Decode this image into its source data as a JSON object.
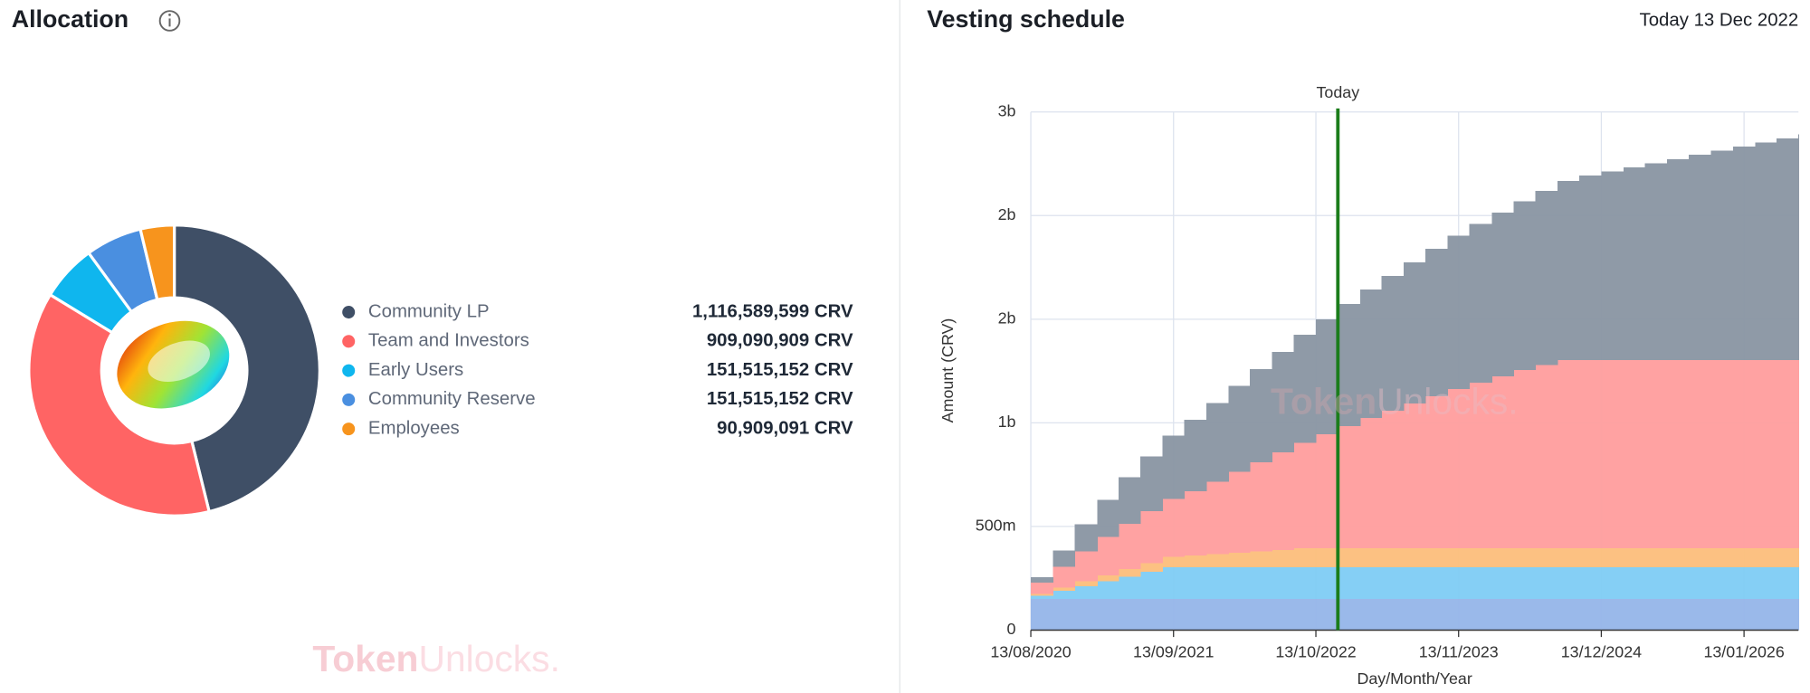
{
  "header": {
    "left_title": "Allocation",
    "right_title": "Vesting schedule",
    "date_note": "Today 13 Dec 2022"
  },
  "watermark_parts": [
    "Token",
    "Unlocks."
  ],
  "chart_data": [
    {
      "type": "pie",
      "donut": true,
      "categories": [
        "Community LP",
        "Team and Investors",
        "Early Users",
        "Community Reserve",
        "Employees"
      ],
      "values": [
        1116589599,
        909090909,
        151515152,
        151515152,
        90909091
      ],
      "value_labels": [
        "1,116,589,599 CRV",
        "909,090,909 CRV",
        "151,515,152 CRV",
        "151,515,152 CRV",
        "90,909,091 CRV"
      ],
      "colors": [
        "#3f4f66",
        "#ff6464",
        "#0fb6ee",
        "#4a8fe0",
        "#f7941d"
      ]
    },
    {
      "type": "area",
      "stacked": true,
      "step": true,
      "grid": true,
      "x_label": "Day/Month/Year",
      "y_label": "Amount (CRV)",
      "x": [
        "13/08/2020",
        "13/10/2020",
        "13/12/2020",
        "13/02/2021",
        "13/04/2021",
        "13/06/2021",
        "13/08/2021",
        "13/10/2021",
        "13/12/2021",
        "13/02/2022",
        "13/04/2022",
        "13/06/2022",
        "13/08/2022",
        "13/10/2022",
        "13/12/2022",
        "13/02/2023",
        "13/04/2023",
        "13/06/2023",
        "13/08/2023",
        "13/10/2023",
        "13/12/2023",
        "13/02/2024",
        "13/04/2024",
        "13/06/2024",
        "13/08/2024",
        "13/10/2024",
        "13/12/2024",
        "13/02/2025",
        "13/04/2025",
        "13/06/2025",
        "13/08/2025",
        "13/10/2025",
        "13/12/2025",
        "13/02/2026",
        "13/04/2026",
        "13/06/2026"
      ],
      "xlim": [
        "13/08/2020",
        "13/06/2026"
      ],
      "xticks": [
        "13/08/2020",
        "13/09/2021",
        "13/10/2022",
        "13/11/2023",
        "13/12/2024",
        "13/01/2026"
      ],
      "ylim": [
        0,
        2500000000
      ],
      "yticks": [
        0,
        {
          "value": 500000000,
          "label": "500m"
        },
        {
          "value": 1000000000,
          "label": "1b"
        },
        {
          "value": 1500000000,
          "label": "2b"
        },
        {
          "value": 2000000000,
          "label": "2b"
        },
        {
          "value": 2500000000,
          "label": "3b"
        }
      ],
      "marker": {
        "x": "13/12/2022",
        "label": "Today",
        "color": "#1b7d1b"
      },
      "series": [
        {
          "color": "#97b7ea",
          "values": [
            151500000,
            151500000,
            151500000,
            151500000,
            151500000,
            151500000,
            151500000,
            151500000,
            151500000,
            151500000,
            151500000,
            151500000,
            151500000,
            151500000,
            151500000,
            151500000,
            151500000,
            151500000,
            151500000,
            151500000,
            151500000,
            151500000,
            151500000,
            151500000,
            151500000,
            151500000,
            151500000,
            151500000,
            151500000,
            151500000,
            151500000,
            151500000,
            151500000,
            151500000,
            151500000,
            151500000
          ]
        },
        {
          "color": "#82cef5",
          "values": [
            15000000,
            38000000,
            61000000,
            83000000,
            106000000,
            129000000,
            151500000,
            151500000,
            151500000,
            151500000,
            151500000,
            151500000,
            151500000,
            151500000,
            151500000,
            151500000,
            151500000,
            151500000,
            151500000,
            151500000,
            151500000,
            151500000,
            151500000,
            151500000,
            151500000,
            151500000,
            151500000,
            151500000,
            151500000,
            151500000,
            151500000,
            151500000,
            151500000,
            151500000,
            151500000,
            151500000
          ]
        },
        {
          "color": "#fcc07e",
          "values": [
            8000000,
            15000000,
            22000000,
            29000000,
            36000000,
            43000000,
            50000000,
            56000000,
            63000000,
            70000000,
            77000000,
            84000000,
            91000000,
            91000000,
            91000000,
            91000000,
            91000000,
            91000000,
            91000000,
            91000000,
            91000000,
            91000000,
            91000000,
            91000000,
            91000000,
            91000000,
            91000000,
            91000000,
            91000000,
            91000000,
            91000000,
            91000000,
            91000000,
            91000000,
            91000000,
            91000000
          ]
        },
        {
          "color": "#ffa0a0",
          "values": [
            55000000,
            100000000,
            145000000,
            185000000,
            220000000,
            250000000,
            280000000,
            310000000,
            350000000,
            390000000,
            430000000,
            470000000,
            510000000,
            550000000,
            590000000,
            630000000,
            665000000,
            700000000,
            735000000,
            770000000,
            800000000,
            830000000,
            860000000,
            885000000,
            909000000,
            909000000,
            909000000,
            909000000,
            909000000,
            909000000,
            909000000,
            909000000,
            909000000,
            909000000,
            909000000,
            909000000
          ]
        },
        {
          "color": "#8c97a5",
          "values": [
            26000000,
            80000000,
            130000000,
            180000000,
            225000000,
            265000000,
            305000000,
            345000000,
            380000000,
            415000000,
            450000000,
            485000000,
            520000000,
            555000000,
            590000000,
            620000000,
            650000000,
            680000000,
            710000000,
            740000000,
            765000000,
            790000000,
            815000000,
            840000000,
            865000000,
            890000000,
            910000000,
            930000000,
            950000000,
            970000000,
            990000000,
            1010000000,
            1030000000,
            1050000000,
            1070000000,
            1090000000
          ]
        }
      ]
    }
  ]
}
